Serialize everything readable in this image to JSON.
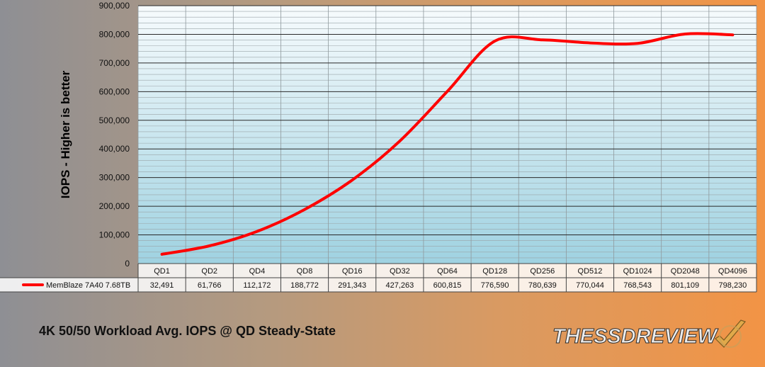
{
  "chart_data": {
    "type": "line",
    "title": "4K 50/50 Workload Avg. IOPS @ QD Steady-State",
    "ylabel": "IOPS - Higher is better",
    "xlabel": "",
    "categories": [
      "QD1",
      "QD2",
      "QD4",
      "QD8",
      "QD16",
      "QD32",
      "QD64",
      "QD128",
      "QD256",
      "QD512",
      "QD1024",
      "QD2048",
      "QD4096"
    ],
    "series": [
      {
        "name": "MemBlaze 7A40 7.68TB",
        "values": [
          32491,
          61766,
          112172,
          188772,
          291343,
          427263,
          600815,
          776590,
          780639,
          770044,
          768543,
          801109,
          798230
        ],
        "labels": [
          "32,491",
          "61,766",
          "112,172",
          "188,772",
          "291,343",
          "427,263",
          "600,815",
          "776,590",
          "780,639",
          "770,044",
          "768,543",
          "801,109",
          "798,230"
        ],
        "color": "#ff0000"
      }
    ],
    "ylim": [
      0,
      900000
    ],
    "yticks": [
      "0",
      "100,000",
      "200,000",
      "300,000",
      "400,000",
      "500,000",
      "600,000",
      "700,000",
      "800,000",
      "900,000"
    ],
    "grid": true,
    "legend": "data-table"
  },
  "logo_text": "THESSDREVIEW"
}
